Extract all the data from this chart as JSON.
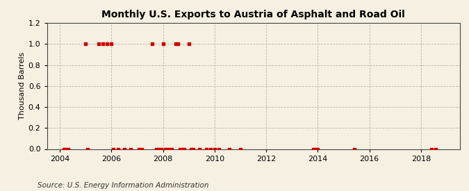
{
  "title": "Monthly U.S. Exports to Austria of Asphalt and Road Oil",
  "ylabel": "Thousand Barrels",
  "source": "Source: U.S. Energy Information Administration",
  "background_color": "#f5f0e1",
  "marker_color": "#cc0000",
  "ylim": [
    0.0,
    1.2
  ],
  "yticks": [
    0.0,
    0.2,
    0.4,
    0.6,
    0.8,
    1.0,
    1.2
  ],
  "xlim_start": 2003.5,
  "xlim_end": 2019.5,
  "xticks": [
    2004,
    2006,
    2008,
    2010,
    2012,
    2014,
    2016,
    2018
  ],
  "data_points": [
    [
      2004.17,
      0.0
    ],
    [
      2004.25,
      0.0
    ],
    [
      2004.33,
      0.0
    ],
    [
      2005.0,
      1.0
    ],
    [
      2005.08,
      0.0
    ],
    [
      2005.5,
      1.0
    ],
    [
      2005.67,
      1.0
    ],
    [
      2005.83,
      1.0
    ],
    [
      2006.0,
      1.0
    ],
    [
      2006.08,
      0.0
    ],
    [
      2006.25,
      0.0
    ],
    [
      2006.5,
      0.0
    ],
    [
      2006.75,
      0.0
    ],
    [
      2007.08,
      0.0
    ],
    [
      2007.17,
      0.0
    ],
    [
      2007.58,
      1.0
    ],
    [
      2007.75,
      0.0
    ],
    [
      2007.83,
      0.0
    ],
    [
      2007.92,
      0.0
    ],
    [
      2008.0,
      1.0
    ],
    [
      2008.08,
      0.0
    ],
    [
      2008.17,
      0.0
    ],
    [
      2008.25,
      0.0
    ],
    [
      2008.33,
      0.0
    ],
    [
      2008.5,
      1.0
    ],
    [
      2008.58,
      1.0
    ],
    [
      2008.67,
      0.0
    ],
    [
      2008.75,
      0.0
    ],
    [
      2008.83,
      0.0
    ],
    [
      2009.0,
      1.0
    ],
    [
      2009.08,
      0.0
    ],
    [
      2009.17,
      0.0
    ],
    [
      2009.42,
      0.0
    ],
    [
      2009.67,
      0.0
    ],
    [
      2009.83,
      0.0
    ],
    [
      2010.0,
      0.0
    ],
    [
      2010.17,
      0.0
    ],
    [
      2010.58,
      0.0
    ],
    [
      2011.0,
      0.0
    ],
    [
      2013.83,
      0.0
    ],
    [
      2013.92,
      0.0
    ],
    [
      2014.0,
      0.0
    ],
    [
      2015.42,
      0.0
    ],
    [
      2018.42,
      0.0
    ],
    [
      2018.58,
      0.0
    ]
  ],
  "title_fontsize": 10,
  "ylabel_fontsize": 8,
  "tick_fontsize": 8,
  "source_fontsize": 7.5
}
